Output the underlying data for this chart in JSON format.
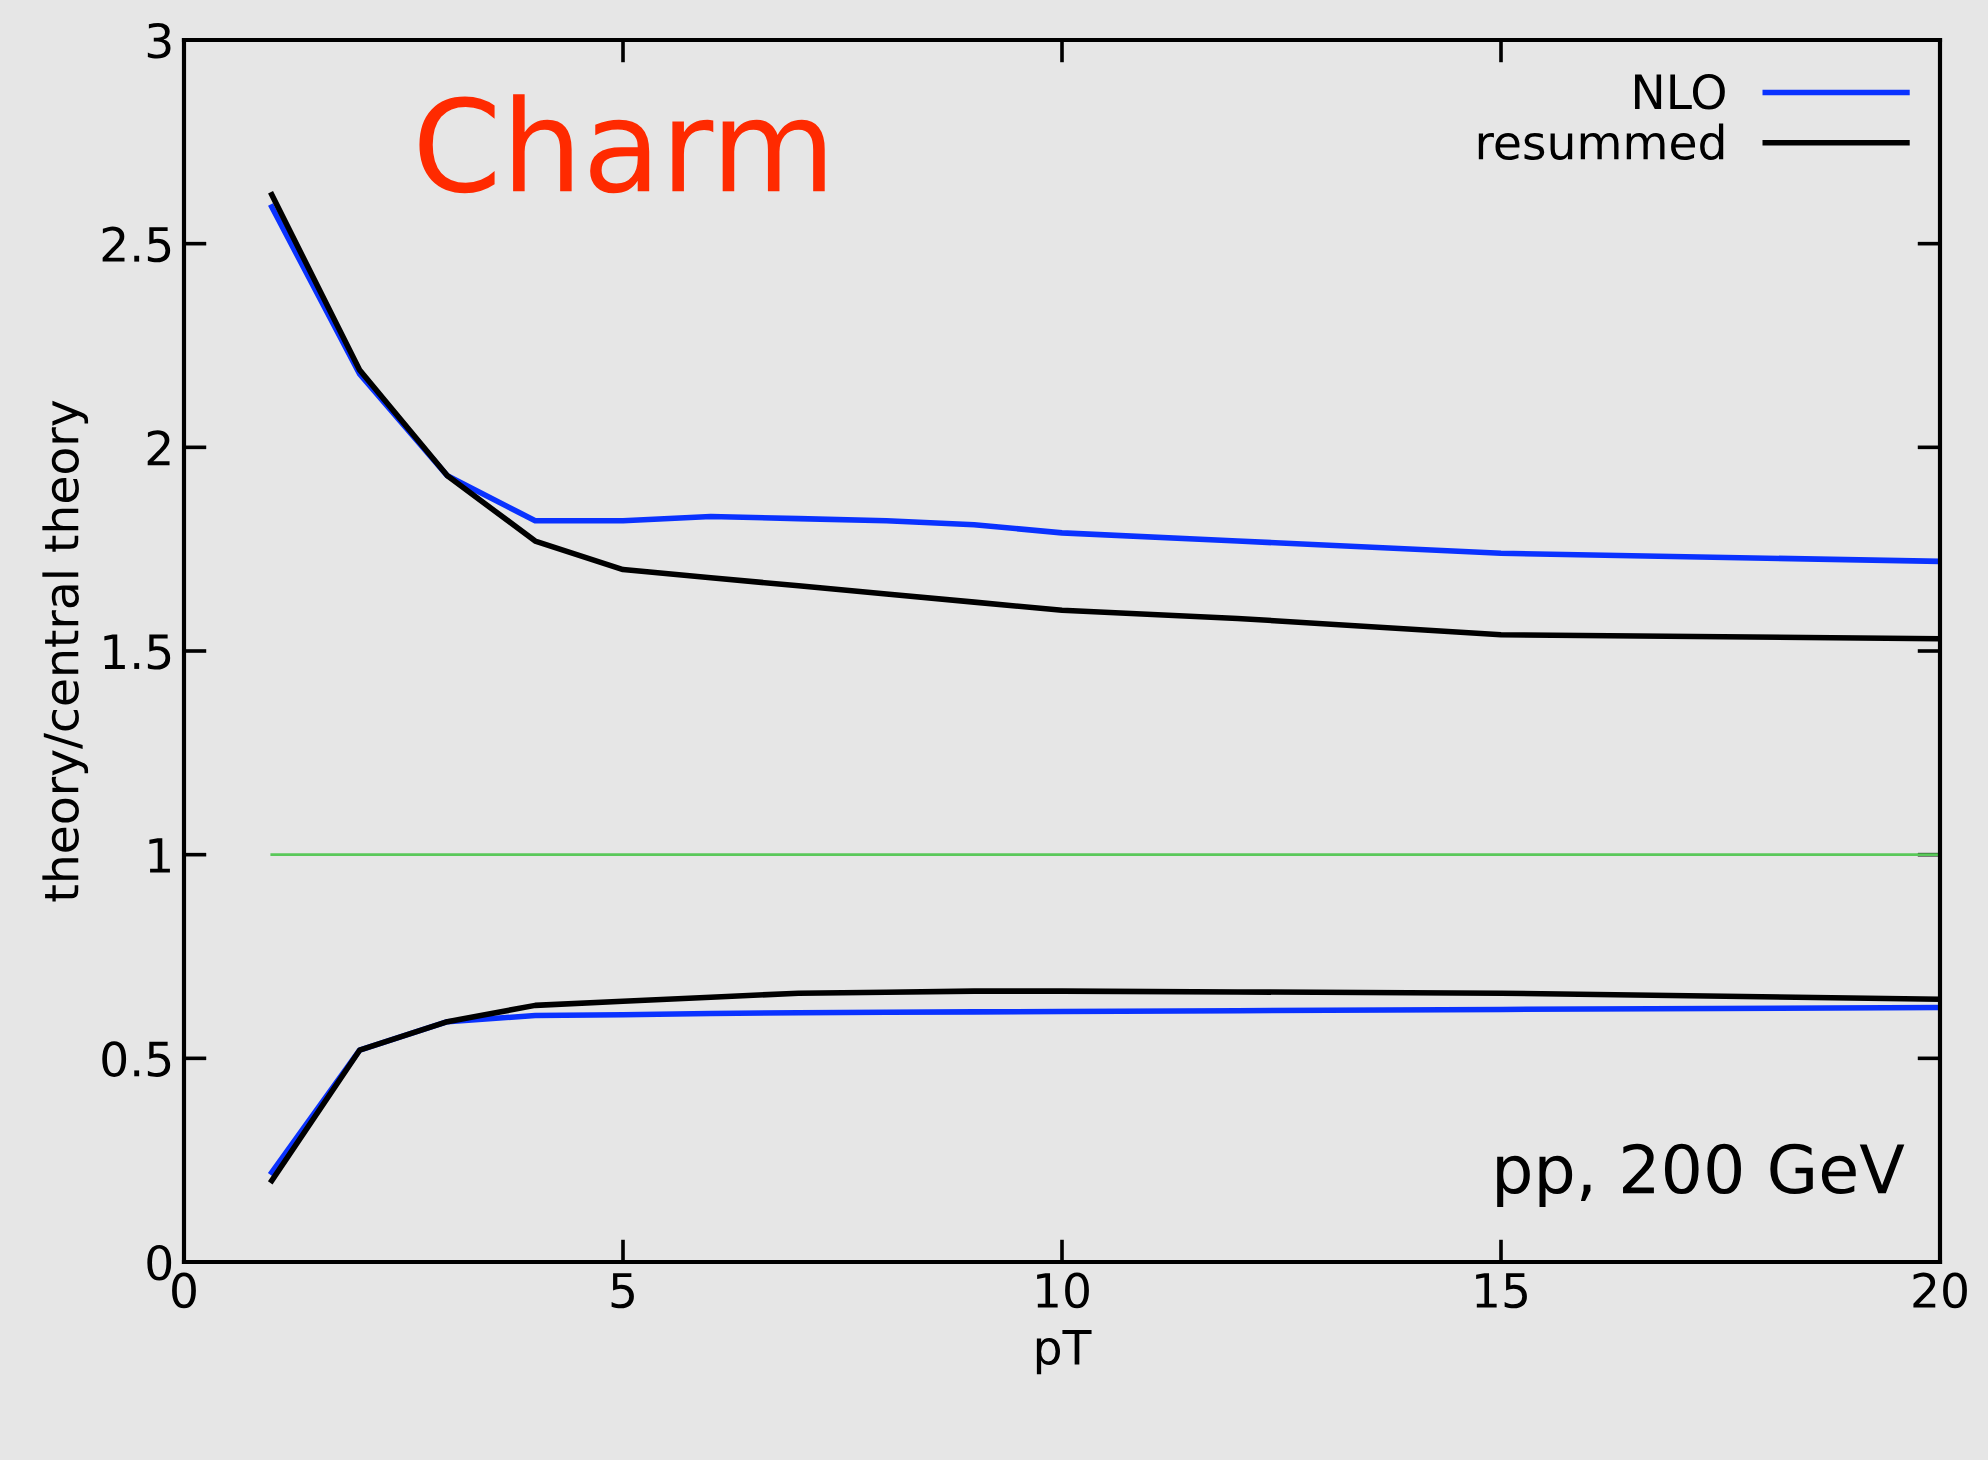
{
  "chart_data": {
    "type": "line",
    "xlabel": "pT",
    "ylabel": "theory/central theory",
    "xlim": [
      0,
      20
    ],
    "ylim": [
      0,
      3
    ],
    "xticks": [
      0,
      5,
      10,
      15,
      20
    ],
    "yticks": [
      0,
      0.5,
      1,
      1.5,
      2,
      2.5,
      3
    ],
    "x": [
      1,
      2,
      3,
      4,
      5,
      6,
      7,
      8,
      9,
      10,
      12,
      15,
      20
    ],
    "series": [
      {
        "name": "NLO",
        "color": "#0a32ff",
        "values": [
          2.59,
          2.18,
          1.93,
          1.82,
          1.82,
          1.83,
          1.825,
          1.82,
          1.81,
          1.79,
          1.77,
          1.74,
          1.72
        ]
      },
      {
        "name": "resummed",
        "color": "#000000",
        "values": [
          2.62,
          2.19,
          1.93,
          1.77,
          1.7,
          1.68,
          1.66,
          1.64,
          1.62,
          1.6,
          1.58,
          1.54,
          1.53
        ]
      },
      {
        "color": "#0a32ff",
        "values": [
          0.22,
          0.52,
          0.59,
          0.605,
          0.607,
          0.61,
          0.612,
          0.613,
          0.614,
          0.615,
          0.617,
          0.62,
          0.625
        ]
      },
      {
        "color": "#000000",
        "values": [
          0.2,
          0.52,
          0.59,
          0.63,
          0.64,
          0.65,
          0.66,
          0.662,
          0.665,
          0.665,
          0.663,
          0.66,
          0.645
        ]
      }
    ],
    "ref_lines": [
      {
        "axis": "y",
        "value": 1,
        "color": "#5ac85a"
      }
    ],
    "annotations": [
      "Charm",
      "pp, 200 GeV"
    ],
    "legend": "top right",
    "grid": false,
    "marker": "none",
    "line_style": "solid"
  }
}
